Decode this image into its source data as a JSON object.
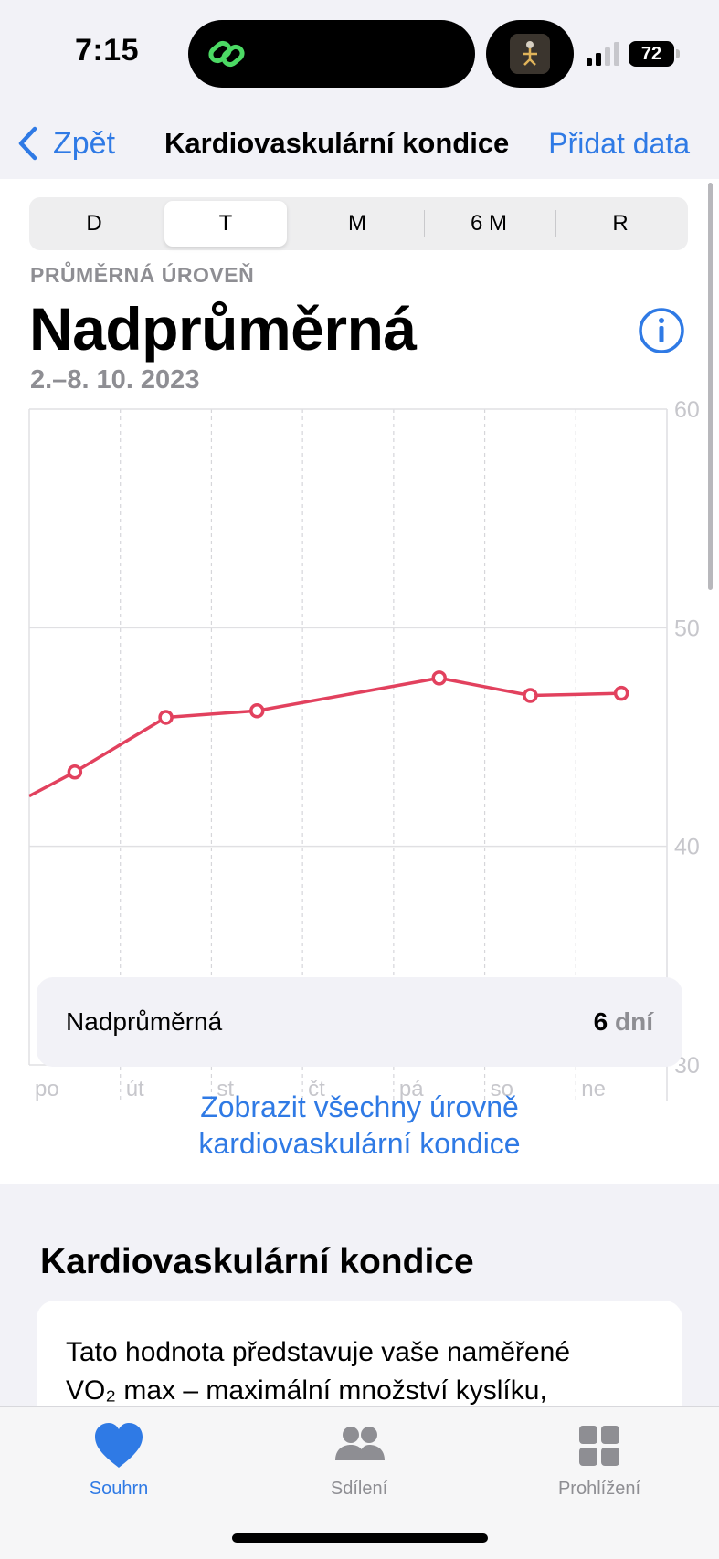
{
  "status_bar": {
    "time": "7:15",
    "battery": "72"
  },
  "nav": {
    "back_label": "Zpět",
    "title": "Kardiovaskulární kondice",
    "action_label": "Přidat data"
  },
  "segments": [
    {
      "label": "D",
      "active": false
    },
    {
      "label": "T",
      "active": true
    },
    {
      "label": "M",
      "active": false
    },
    {
      "label": "6 M",
      "active": false
    },
    {
      "label": "R",
      "active": false
    }
  ],
  "summary": {
    "avg_label": "PRŮMĚRNÁ ÚROVEŇ",
    "avg_value": "Nadprůměrná",
    "date_range": "2.–8. 10. 2023"
  },
  "chart_data": {
    "type": "line",
    "categories": [
      "po",
      "út",
      "st",
      "čt",
      "pá",
      "so",
      "ne"
    ],
    "series": [
      {
        "color": "#e2415e",
        "points": [
          {
            "x": "po",
            "y": 43.4
          },
          {
            "x": "út",
            "y": 45.9
          },
          {
            "x": "st",
            "y": 46.2
          },
          {
            "x": "pá",
            "y": 47.7
          },
          {
            "x": "so",
            "y": 46.9
          },
          {
            "x": "ne",
            "y": 47.0
          }
        ]
      }
    ],
    "ylim": [
      30,
      60
    ],
    "y_ticks": [
      30,
      40,
      50,
      60
    ],
    "grid": true,
    "y_axis_side": "right"
  },
  "level_card": {
    "label": "Nadprůměrná",
    "count": "6",
    "unit": "dní"
  },
  "show_all": {
    "line1": "Zobrazit všechny úrovně",
    "line2": "kardiovaskulární kondice"
  },
  "section": {
    "title": "Kardiovaskulární kondice",
    "desc_line1": "Tato hodnota představuje vaše naměřené",
    "desc_line2": "VO₂ max – maximální množství kyslíku,"
  },
  "tabs": [
    {
      "label": "Souhrn",
      "icon": "heart-icon",
      "active": true
    },
    {
      "label": "Sdílení",
      "icon": "people-icon",
      "active": false
    },
    {
      "label": "Prohlížení",
      "icon": "grid-icon",
      "active": false
    }
  ],
  "colors": {
    "accent": "#2f7ae5",
    "line": "#e2415e",
    "inactive": "#8e8e93"
  }
}
